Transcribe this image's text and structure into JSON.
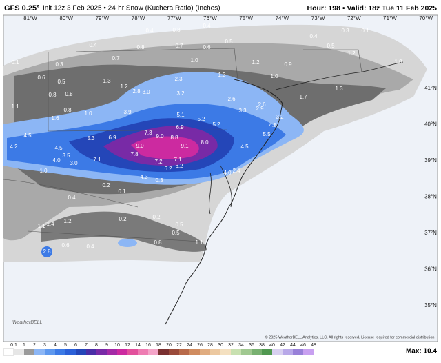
{
  "header": {
    "model": "GFS 0.25°",
    "description": "Init 12z 3 Feb 2025 • 24-hr Snow (Kuchera Ratio) (Inches)",
    "valid": "Hour: 198 • Valid: 18z Tue 11 Feb 2025"
  },
  "map": {
    "longitudes": [
      "81°W",
      "80°W",
      "79°W",
      "78°W",
      "77°W",
      "76°W",
      "75°W",
      "74°W",
      "73°W",
      "72°W",
      "71°W",
      "70°W"
    ],
    "latitudes": [
      "41°N",
      "40°N",
      "39°N",
      "38°N",
      "37°N",
      "36°N",
      "35°N"
    ],
    "labels": [
      "0.1",
      "0.3",
      "0.6",
      "0.5",
      "0.8",
      "0.8",
      "1.1",
      "0.8",
      "1.0",
      "1.6",
      "0.4",
      "0.7",
      "1.3",
      "1.2",
      "0.4",
      "0.8",
      "0.8",
      "0.7",
      "0.4",
      "0.6",
      "1.0",
      "0.5",
      "1.2",
      "1.0",
      "0.9",
      "0.4",
      "0.3",
      "0.1",
      "0.5",
      "1.2",
      "1.0",
      "2.3",
      "2.8",
      "3.0",
      "3.2",
      "1.3",
      "2.6",
      "2.6",
      "3.9",
      "5.1",
      "5.2",
      "5.2",
      "6.9",
      "3.3",
      "2.9",
      "4.5",
      "4.2",
      "5.3",
      "6.9",
      "7.3",
      "9.0",
      "8.8",
      "8.0",
      "9.0",
      "9.1",
      "4.5",
      "3.5",
      "7.1",
      "7.8",
      "7.2",
      "7.1",
      "6.2",
      "6.2",
      "4.0",
      "3.0",
      "1.0",
      "4.3",
      "4.5",
      "5.5",
      "4.8",
      "3.2",
      "4.0",
      "2.4",
      "0.2",
      "0.1",
      "0.3",
      "0.4",
      "1.2",
      "1.4",
      "1.1",
      "0.2",
      "0.2",
      "0.5",
      "0.6",
      "0.4",
      "2.8",
      "0.8",
      "0.5",
      "1.1",
      "1.7",
      "1.3"
    ],
    "watermark": "WeatherBELL",
    "copyright": "© 2025 WeatherBELL Analytics, LLC. All rights reserved. License required for commercial distribution."
  },
  "colorbar": {
    "labels": [
      "0.1",
      "1",
      "2",
      "3",
      "4",
      "5",
      "6",
      "7",
      "8",
      "9",
      "10",
      "12",
      "14",
      "16",
      "18",
      "20",
      "22",
      "24",
      "26",
      "28",
      "30",
      "32",
      "34",
      "36",
      "38",
      "40",
      "42",
      "44",
      "46",
      "48"
    ],
    "colors": [
      "#e6e6e6",
      "#9a9a9a",
      "#8cb6f5",
      "#5e98ee",
      "#3c7ae6",
      "#2b60d8",
      "#2446b8",
      "#4a2ea6",
      "#782aa6",
      "#a42aa6",
      "#cc2aa0",
      "#e2509c",
      "#ee7cb2",
      "#f4a4c8",
      "#7a3030",
      "#9a4a3a",
      "#b86a4a",
      "#d08c60",
      "#e0ac80",
      "#ecc8a0",
      "#f4e0c0",
      "#c8e0b0",
      "#a0c890",
      "#78b070",
      "#509850",
      "#d8d0f0",
      "#b8a8e8",
      "#9880d8",
      "#c8a0f0"
    ],
    "max": "Max: 10.4"
  }
}
